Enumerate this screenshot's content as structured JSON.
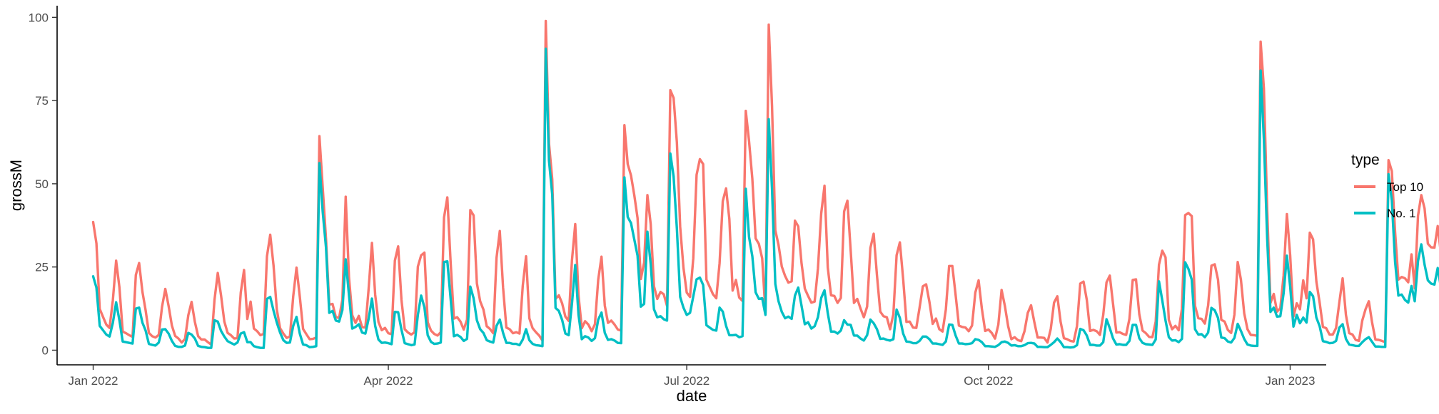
{
  "chart_data": {
    "type": "line",
    "xlabel": "date",
    "ylabel": "grossM",
    "x_type": "date",
    "x_start": "2022-01-01",
    "x_step": "1 day",
    "xlim": [
      "2021-12-21",
      "2023-01-12"
    ],
    "ylim": [
      -4.4,
      103.5
    ],
    "x_ticks": [
      {
        "date": "2022-01-01",
        "label": "Jan 2022"
      },
      {
        "date": "2022-04-01",
        "label": "Apr 2022"
      },
      {
        "date": "2022-07-01",
        "label": "Jul 2022"
      },
      {
        "date": "2022-10-01",
        "label": "Oct 2022"
      },
      {
        "date": "2023-01-01",
        "label": "Jan 2023"
      }
    ],
    "y_ticks": [
      0,
      25,
      50,
      75,
      100
    ],
    "y_tick_labels": [
      "0",
      "25",
      "50",
      "75",
      "100"
    ],
    "grid": false,
    "legend": {
      "title": "type",
      "position": "right"
    },
    "series": [
      {
        "name": "Top 10",
        "color": "#F8766D",
        "values": [
          38.5,
          32.1,
          12.4,
          10.0,
          7.7,
          6.7,
          15.0,
          26.9,
          18.9,
          5.6,
          5.1,
          4.5,
          4.0,
          22.6,
          26.2,
          17.6,
          12.0,
          5.2,
          4.2,
          3.8,
          4.6,
          13.0,
          18.4,
          13.3,
          7.4,
          4.3,
          3.5,
          2.3,
          3.4,
          10.5,
          14.5,
          8.5,
          4.2,
          3.2,
          3.2,
          2.4,
          1.7,
          15.1,
          23.2,
          16.4,
          8.6,
          5.2,
          4.5,
          3.5,
          3.6,
          17.3,
          24.1,
          9.4,
          14.6,
          6.5,
          5.7,
          4.5,
          4.9,
          28.2,
          34.7,
          25.5,
          12.2,
          6.6,
          5.0,
          3.7,
          4.1,
          16.2,
          24.8,
          16.1,
          6.4,
          4.8,
          3.3,
          3.4,
          3.8,
          64.3,
          48.9,
          33.5,
          13.7,
          13.9,
          9.9,
          9.7,
          15.2,
          46.1,
          21.9,
          10.5,
          8.2,
          10.3,
          6.9,
          6.8,
          18.6,
          32.2,
          16.7,
          8.5,
          6.0,
          6.7,
          5.1,
          4.8,
          26.9,
          31.2,
          15.2,
          6.3,
          5.3,
          4.7,
          5.4,
          25.1,
          28.5,
          29.3,
          8.4,
          5.9,
          4.9,
          4.4,
          5.4,
          39.9,
          45.9,
          26.5,
          9.5,
          9.9,
          8.6,
          6.2,
          9.2,
          42.1,
          40.5,
          20.1,
          14.7,
          12.2,
          7.2,
          6.4,
          5.1,
          27.7,
          35.8,
          18.8,
          6.8,
          6.3,
          5.1,
          5.4,
          5.0,
          19.4,
          28.2,
          9.6,
          6.6,
          5.4,
          4.4,
          2.9,
          98.9,
          62.2,
          51.3,
          15.4,
          16.5,
          14.1,
          10.1,
          8.8,
          27.0,
          37.9,
          16.4,
          6.6,
          8.7,
          7.7,
          5.7,
          7.8,
          21.2,
          28.1,
          13.4,
          8.2,
          8.9,
          7.7,
          6.2,
          5.9,
          67.6,
          55.9,
          52.5,
          46.6,
          39.7,
          21.4,
          26.3,
          46.6,
          37.9,
          19.2,
          15.4,
          17.5,
          16.8,
          13.3,
          78.1,
          75.8,
          62.4,
          37.1,
          24.8,
          17.3,
          16.0,
          27.7,
          52.7,
          57.4,
          55.9,
          21.2,
          19.0,
          16.8,
          15.6,
          26.1,
          44.8,
          48.6,
          39.4,
          17.9,
          21.1,
          15.8,
          14.8,
          71.9,
          62.8,
          51.5,
          33.6,
          31.9,
          27.6,
          11.3,
          97.8,
          73.3,
          36.0,
          31.6,
          25.1,
          22.3,
          20.3,
          20.7,
          38.9,
          37.2,
          26.2,
          18.5,
          16.3,
          14.3,
          14.6,
          24.5,
          41.1,
          49.4,
          24.8,
          16.5,
          16.3,
          14.2,
          15.7,
          41.7,
          44.9,
          29.9,
          14.2,
          15.4,
          12.5,
          9.9,
          13.1,
          30.7,
          35.0,
          22.5,
          11.6,
          10.2,
          9.9,
          6.3,
          10.8,
          28.5,
          32.4,
          21.4,
          8.5,
          8.6,
          6.8,
          6.7,
          12.8,
          19.2,
          19.8,
          14.5,
          7.9,
          9.5,
          6.3,
          5.6,
          12.2,
          25.3,
          25.3,
          16.6,
          7.4,
          7.0,
          6.8,
          5.7,
          7.4,
          17.3,
          21.0,
          12.4,
          5.8,
          6.2,
          5.2,
          3.5,
          7.6,
          18.1,
          13.3,
          7.2,
          3.3,
          3.9,
          3.0,
          2.7,
          5.7,
          11.2,
          13.5,
          8.4,
          3.8,
          3.8,
          3.7,
          2.3,
          6.4,
          14.3,
          16.2,
          8.5,
          3.6,
          3.3,
          2.8,
          2.6,
          7.2,
          20.0,
          20.6,
          15.1,
          5.8,
          6.1,
          5.7,
          4.6,
          10.6,
          20.4,
          22.4,
          13.8,
          5.3,
          5.4,
          4.9,
          4.6,
          9.4,
          21.1,
          21.3,
          10.8,
          5.9,
          5.1,
          4.0,
          3.9,
          8.6,
          25.7,
          29.9,
          27.9,
          9.1,
          6.3,
          7.3,
          6.0,
          12.5,
          40.6,
          41.2,
          40.3,
          13.3,
          9.6,
          9.4,
          8.0,
          13.5,
          25.4,
          25.8,
          21.2,
          9.1,
          8.6,
          6.1,
          5.2,
          10.7,
          26.5,
          21.2,
          11.1,
          6.3,
          4.6,
          4.5,
          4.3,
          92.7,
          78.6,
          42.1,
          14.2,
          16.9,
          11.6,
          12.6,
          22.5,
          40.9,
          28.5,
          10.1,
          14.1,
          12.3,
          21.0,
          15.6,
          35.3,
          33.3,
          20.6,
          14.3,
          7.0,
          6.6,
          4.7,
          4.7,
          6.7,
          14.4,
          21.6,
          10.6,
          5.1,
          4.7,
          3.1,
          2.8,
          8.9,
          12.3,
          14.7,
          8.3,
          3.2,
          3.1,
          2.8,
          2.4,
          57.1,
          53.8,
          35.5,
          21.2,
          22.0,
          21.6,
          20.4,
          28.8,
          18.6,
          40.4,
          46.6,
          42.6,
          32.0,
          30.9,
          30.8,
          37.3,
          28.9
        ]
      },
      {
        "name": "No. 1",
        "color": "#00BFC4",
        "values": [
          22.2,
          18.8,
          7.3,
          6.0,
          4.7,
          4.1,
          8.2,
          14.4,
          9.0,
          2.6,
          2.4,
          2.2,
          2.0,
          12.5,
          12.8,
          8.3,
          5.9,
          1.9,
          1.6,
          1.4,
          2.3,
          6.2,
          6.3,
          5.0,
          2.8,
          1.3,
          1.0,
          1.0,
          1.4,
          5.2,
          4.7,
          3.5,
          1.3,
          1.0,
          0.9,
          0.7,
          0.7,
          9.0,
          8.6,
          5.8,
          4.1,
          2.7,
          2.2,
          1.7,
          2.3,
          5.0,
          5.4,
          2.4,
          2.4,
          1.2,
          0.9,
          0.7,
          0.7,
          15.4,
          16.0,
          11.9,
          8.3,
          5.3,
          3.0,
          2.2,
          2.3,
          7.3,
          10.0,
          5.0,
          1.7,
          1.5,
          0.9,
          1.0,
          1.2,
          56.2,
          41.6,
          30.9,
          11.2,
          11.8,
          8.9,
          8.6,
          12.1,
          27.3,
          16.6,
          6.5,
          7.0,
          7.8,
          5.3,
          5.0,
          9.5,
          15.5,
          7.3,
          3.2,
          2.2,
          2.3,
          2.1,
          1.8,
          11.5,
          11.4,
          6.2,
          2.1,
          1.8,
          1.5,
          1.7,
          10.6,
          16.4,
          12.9,
          4.5,
          2.5,
          1.9,
          2.0,
          2.3,
          26.5,
          26.7,
          15.5,
          4.2,
          4.6,
          4.0,
          2.8,
          3.4,
          19.1,
          15.6,
          9.0,
          6.3,
          5.2,
          3.0,
          2.6,
          2.3,
          7.3,
          9.2,
          5.2,
          2.2,
          2.2,
          1.9,
          1.9,
          1.5,
          3.2,
          6.3,
          3.0,
          1.9,
          1.5,
          1.4,
          1.2,
          90.6,
          57.0,
          46.7,
          12.7,
          11.8,
          9.1,
          5.0,
          4.5,
          14.0,
          25.6,
          10.6,
          3.3,
          4.2,
          3.8,
          2.8,
          3.6,
          9.2,
          11.3,
          5.2,
          3.1,
          3.3,
          2.9,
          2.2,
          2.1,
          51.9,
          40.0,
          38.2,
          33.3,
          28.4,
          13.1,
          13.9,
          35.6,
          25.9,
          12.3,
          9.9,
          10.2,
          9.3,
          8.9,
          59.1,
          52.2,
          36.5,
          16.0,
          12.8,
          10.6,
          11.2,
          16.2,
          21.3,
          21.8,
          19.6,
          7.5,
          6.8,
          6.1,
          5.9,
          12.8,
          11.6,
          7.3,
          4.5,
          4.5,
          4.6,
          3.9,
          4.2,
          48.5,
          34.0,
          28.2,
          17.4,
          15.4,
          15.6,
          10.6,
          69.4,
          48.3,
          19.9,
          14.7,
          11.5,
          9.6,
          10.1,
          9.4,
          16.4,
          18.8,
          13.4,
          7.8,
          8.4,
          6.5,
          7.2,
          9.9,
          15.7,
          18.0,
          11.1,
          5.6,
          5.6,
          5.0,
          5.9,
          9.0,
          7.7,
          7.6,
          4.4,
          4.4,
          3.5,
          2.9,
          4.5,
          9.2,
          8.1,
          6.3,
          3.4,
          3.5,
          3.1,
          2.9,
          3.3,
          12.2,
          9.7,
          5.0,
          2.6,
          2.5,
          2.1,
          2.1,
          2.8,
          4.1,
          4.1,
          3.3,
          2.0,
          2.0,
          1.8,
          1.6,
          2.6,
          7.7,
          7.6,
          4.4,
          2.0,
          2.0,
          1.8,
          1.9,
          2.1,
          3.3,
          3.1,
          2.4,
          1.2,
          1.2,
          1.1,
          1.0,
          1.5,
          2.4,
          2.6,
          2.2,
          1.4,
          1.5,
          1.2,
          1.2,
          1.5,
          2.1,
          2.2,
          2.0,
          1.0,
          1.0,
          0.9,
          0.9,
          1.6,
          2.4,
          3.5,
          2.4,
          0.9,
          0.9,
          0.8,
          0.9,
          1.5,
          6.4,
          6.0,
          4.4,
          1.6,
          1.6,
          1.4,
          1.4,
          2.4,
          9.3,
          6.6,
          3.5,
          1.7,
          1.8,
          1.6,
          1.6,
          2.8,
          7.6,
          7.6,
          3.6,
          2.2,
          1.8,
          1.7,
          1.6,
          3.2,
          20.7,
          15.0,
          8.9,
          3.9,
          2.9,
          3.0,
          2.4,
          3.4,
          26.4,
          24.4,
          21.2,
          6.3,
          4.7,
          4.8,
          3.9,
          5.3,
          12.7,
          12.0,
          9.7,
          3.8,
          3.6,
          2.6,
          2.3,
          3.7,
          7.9,
          5.8,
          3.4,
          1.7,
          1.4,
          1.3,
          1.3,
          84.0,
          63.2,
          33.5,
          11.5,
          12.8,
          10.1,
          10.2,
          17.1,
          28.4,
          19.1,
          7.1,
          10.6,
          8.1,
          9.8,
          8.3,
          17.5,
          16.2,
          9.8,
          7.2,
          2.7,
          2.5,
          2.1,
          2.2,
          2.8,
          6.8,
          7.8,
          3.4,
          1.7,
          1.5,
          1.3,
          1.3,
          2.4,
          3.3,
          3.9,
          2.5,
          1.1,
          1.1,
          1.0,
          1.0,
          52.9,
          45.0,
          26.5,
          16.4,
          16.7,
          15.1,
          14.3,
          19.3,
          14.7,
          26.8,
          31.8,
          25.7,
          21.0,
          20.0,
          19.7,
          24.7,
          18.7
        ]
      }
    ]
  }
}
